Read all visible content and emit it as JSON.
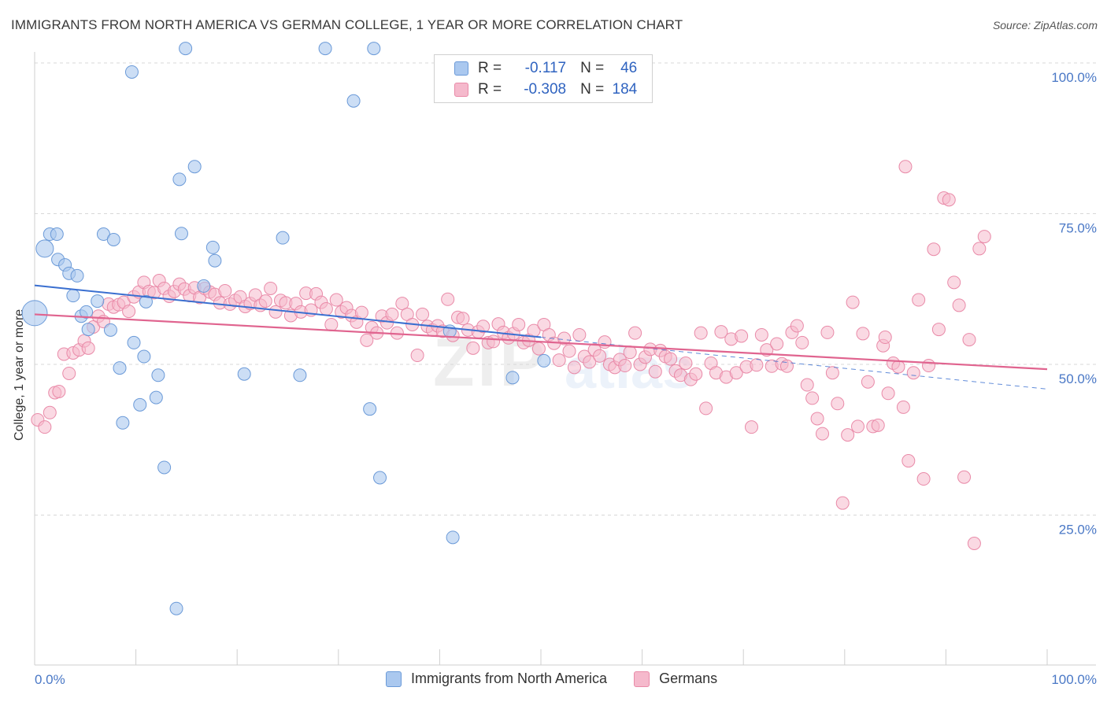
{
  "title": "IMMIGRANTS FROM NORTH AMERICA VS GERMAN COLLEGE, 1 YEAR OR MORE CORRELATION CHART",
  "source": "Source: ZipAtlas.com",
  "watermark": {
    "zip": "ZIP",
    "atlas": "atlas"
  },
  "legend": {
    "rows": [
      {
        "r_label": "R =",
        "r_value": "-0.117",
        "n_label": "N =",
        "n_value": "46"
      },
      {
        "r_label": "R =",
        "r_value": "-0.308",
        "n_label": "N =",
        "n_value": "184"
      }
    ]
  },
  "bottom_legend": {
    "series1": "Immigrants from North America",
    "series2": "Germans"
  },
  "colors": {
    "blue_fill": "#aac8ef",
    "blue_stroke": "#6b9ad8",
    "blue_line": "#3a6fd0",
    "pink_fill": "#f5b9cc",
    "pink_stroke": "#e98aa8",
    "pink_line": "#e0648f",
    "grid": "#d8d8d8",
    "tick_text": "#4a78c6"
  },
  "chart_data": {
    "type": "scatter",
    "title": "IMMIGRANTS FROM NORTH AMERICA VS GERMAN COLLEGE, 1 YEAR OR MORE CORRELATION CHART",
    "xlabel": "",
    "ylabel": "College, 1 year or more",
    "x_tick_labels": [
      "0.0%",
      "100.0%"
    ],
    "y_tick_labels": [
      "100.0%",
      "75.0%",
      "50.0%",
      "25.0%"
    ],
    "xlim": [
      0,
      100
    ],
    "ylim": [
      0,
      105
    ],
    "grid": true,
    "legend_position": "top-center",
    "series": [
      {
        "name": "Immigrants from North America",
        "color": "#aac8ef",
        "R": -0.117,
        "N": 46,
        "trend": {
          "x0": 0,
          "y0": 63.1,
          "x1": 100,
          "y1": 45.9,
          "solid_until": 50
        },
        "points": [
          [
            0,
            58.5
          ],
          [
            1.0,
            69.2
          ],
          [
            1.5,
            71.6
          ],
          [
            2.2,
            71.6
          ],
          [
            2.3,
            67.4
          ],
          [
            3.0,
            66.5
          ],
          [
            3.4,
            65.1
          ],
          [
            4.2,
            64.7
          ],
          [
            3.8,
            61.4
          ],
          [
            4.6,
            58.0
          ],
          [
            5.1,
            58.7
          ],
          [
            5.3,
            55.8
          ],
          [
            6.2,
            60.5
          ],
          [
            7.5,
            55.7
          ],
          [
            6.8,
            71.6
          ],
          [
            7.8,
            70.7
          ],
          [
            8.4,
            49.4
          ],
          [
            8.7,
            40.3
          ],
          [
            9.6,
            98.5
          ],
          [
            9.8,
            53.6
          ],
          [
            10.4,
            43.3
          ],
          [
            10.8,
            51.3
          ],
          [
            11.0,
            60.4
          ],
          [
            12.0,
            44.5
          ],
          [
            12.2,
            48.2
          ],
          [
            12.8,
            32.9
          ],
          [
            14.3,
            80.7
          ],
          [
            14.9,
            102.4
          ],
          [
            14.5,
            71.7
          ],
          [
            15.8,
            82.8
          ],
          [
            16.7,
            63.0
          ],
          [
            17.6,
            69.4
          ],
          [
            17.8,
            67.2
          ],
          [
            20.7,
            48.4
          ],
          [
            24.5,
            71.0
          ],
          [
            26.2,
            48.2
          ],
          [
            28.7,
            102.4
          ],
          [
            31.5,
            93.7
          ],
          [
            33.1,
            42.6
          ],
          [
            33.5,
            102.4
          ],
          [
            34.1,
            31.2
          ],
          [
            41.3,
            21.3
          ],
          [
            47.2,
            47.8
          ],
          [
            50.3,
            50.6
          ],
          [
            14.0,
            9.5
          ],
          [
            41.0,
            55.5
          ]
        ]
      },
      {
        "name": "Germans",
        "color": "#f5b9cc",
        "R": -0.308,
        "N": 184,
        "trend": {
          "x0": 0,
          "y0": 58.3,
          "x1": 100,
          "y1": 49.2,
          "solid_until": 100
        },
        "points": [
          [
            0.3,
            40.8
          ],
          [
            1.0,
            39.6
          ],
          [
            1.5,
            42.0
          ],
          [
            2.0,
            45.3
          ],
          [
            2.4,
            45.5
          ],
          [
            2.9,
            51.7
          ],
          [
            3.4,
            48.5
          ],
          [
            3.8,
            51.9
          ],
          [
            4.4,
            52.4
          ],
          [
            4.9,
            53.9
          ],
          [
            5.3,
            52.7
          ],
          [
            5.8,
            56.2
          ],
          [
            6.3,
            58.0
          ],
          [
            6.8,
            57.1
          ],
          [
            7.3,
            60.0
          ],
          [
            7.8,
            59.5
          ],
          [
            8.3,
            59.9
          ],
          [
            8.8,
            60.3
          ],
          [
            9.3,
            58.8
          ],
          [
            9.8,
            61.2
          ],
          [
            10.3,
            62.0
          ],
          [
            10.8,
            63.6
          ],
          [
            11.3,
            62.1
          ],
          [
            11.8,
            61.9
          ],
          [
            12.3,
            63.9
          ],
          [
            12.8,
            62.6
          ],
          [
            13.3,
            61.3
          ],
          [
            13.8,
            62.1
          ],
          [
            14.3,
            63.3
          ],
          [
            14.8,
            62.5
          ],
          [
            15.3,
            61.4
          ],
          [
            15.8,
            62.7
          ],
          [
            16.3,
            61.1
          ],
          [
            16.8,
            62.6
          ],
          [
            17.3,
            62.0
          ],
          [
            17.8,
            61.6
          ],
          [
            18.3,
            60.2
          ],
          [
            18.8,
            62.2
          ],
          [
            19.3,
            60.0
          ],
          [
            19.8,
            60.6
          ],
          [
            20.3,
            61.2
          ],
          [
            20.8,
            59.6
          ],
          [
            21.3,
            60.1
          ],
          [
            21.8,
            61.5
          ],
          [
            22.3,
            59.8
          ],
          [
            22.8,
            60.5
          ],
          [
            23.3,
            62.6
          ],
          [
            23.8,
            58.7
          ],
          [
            24.3,
            60.6
          ],
          [
            24.8,
            60.2
          ],
          [
            25.3,
            58.1
          ],
          [
            25.8,
            60.1
          ],
          [
            26.3,
            58.7
          ],
          [
            26.8,
            61.8
          ],
          [
            27.3,
            59.0
          ],
          [
            27.8,
            61.7
          ],
          [
            28.3,
            60.3
          ],
          [
            28.8,
            59.2
          ],
          [
            29.3,
            56.6
          ],
          [
            29.8,
            60.7
          ],
          [
            30.3,
            58.7
          ],
          [
            30.8,
            59.4
          ],
          [
            31.3,
            58.1
          ],
          [
            31.8,
            57.0
          ],
          [
            32.3,
            58.6
          ],
          [
            32.8,
            54.0
          ],
          [
            33.3,
            56.1
          ],
          [
            33.8,
            55.2
          ],
          [
            34.3,
            58.0
          ],
          [
            34.8,
            56.9
          ],
          [
            35.3,
            58.3
          ],
          [
            35.8,
            55.2
          ],
          [
            36.3,
            60.1
          ],
          [
            36.8,
            58.3
          ],
          [
            37.3,
            56.6
          ],
          [
            37.8,
            51.5
          ],
          [
            38.3,
            58.3
          ],
          [
            38.8,
            56.3
          ],
          [
            39.3,
            55.7
          ],
          [
            39.8,
            56.4
          ],
          [
            40.3,
            55.5
          ],
          [
            40.8,
            60.8
          ],
          [
            41.3,
            54.8
          ],
          [
            41.8,
            57.8
          ],
          [
            42.3,
            57.6
          ],
          [
            42.8,
            55.7
          ],
          [
            43.3,
            52.7
          ],
          [
            43.8,
            55.4
          ],
          [
            44.3,
            56.3
          ],
          [
            44.8,
            53.6
          ],
          [
            45.3,
            53.8
          ],
          [
            45.8,
            56.7
          ],
          [
            46.3,
            55.3
          ],
          [
            46.8,
            54.4
          ],
          [
            47.3,
            55.1
          ],
          [
            47.8,
            56.6
          ],
          [
            48.3,
            53.6
          ],
          [
            48.8,
            54.0
          ],
          [
            49.3,
            55.6
          ],
          [
            49.8,
            52.6
          ],
          [
            50.3,
            56.6
          ],
          [
            50.8,
            54.9
          ],
          [
            51.3,
            53.5
          ],
          [
            51.8,
            50.7
          ],
          [
            52.3,
            54.3
          ],
          [
            52.8,
            52.2
          ],
          [
            53.3,
            49.5
          ],
          [
            53.8,
            54.9
          ],
          [
            54.3,
            51.3
          ],
          [
            54.8,
            50.4
          ],
          [
            55.3,
            52.4
          ],
          [
            55.8,
            51.4
          ],
          [
            56.3,
            53.7
          ],
          [
            56.8,
            50.0
          ],
          [
            57.3,
            49.5
          ],
          [
            57.8,
            50.8
          ],
          [
            58.3,
            49.8
          ],
          [
            58.8,
            52.0
          ],
          [
            59.3,
            55.2
          ],
          [
            59.8,
            50.0
          ],
          [
            60.3,
            51.2
          ],
          [
            60.8,
            52.5
          ],
          [
            61.3,
            48.8
          ],
          [
            61.8,
            52.3
          ],
          [
            62.3,
            51.3
          ],
          [
            62.8,
            50.9
          ],
          [
            63.3,
            48.9
          ],
          [
            63.8,
            48.2
          ],
          [
            64.3,
            50.2
          ],
          [
            64.8,
            47.5
          ],
          [
            65.3,
            48.4
          ],
          [
            65.8,
            55.2
          ],
          [
            66.3,
            42.7
          ],
          [
            66.8,
            50.2
          ],
          [
            67.3,
            48.6
          ],
          [
            67.8,
            55.4
          ],
          [
            68.3,
            47.9
          ],
          [
            68.8,
            54.2
          ],
          [
            69.3,
            48.6
          ],
          [
            69.8,
            54.7
          ],
          [
            70.3,
            49.6
          ],
          [
            70.8,
            39.6
          ],
          [
            71.3,
            49.9
          ],
          [
            71.8,
            54.9
          ],
          [
            72.3,
            52.4
          ],
          [
            72.8,
            49.7
          ],
          [
            73.3,
            53.4
          ],
          [
            73.8,
            50.1
          ],
          [
            74.3,
            49.7
          ],
          [
            74.8,
            55.3
          ],
          [
            75.3,
            56.4
          ],
          [
            75.8,
            53.6
          ],
          [
            76.3,
            46.6
          ],
          [
            76.8,
            44.4
          ],
          [
            77.3,
            41.0
          ],
          [
            77.8,
            38.5
          ],
          [
            78.3,
            55.3
          ],
          [
            78.8,
            48.6
          ],
          [
            79.3,
            43.5
          ],
          [
            79.8,
            27.0
          ],
          [
            80.3,
            38.3
          ],
          [
            80.8,
            60.3
          ],
          [
            81.3,
            39.7
          ],
          [
            81.8,
            55.1
          ],
          [
            82.3,
            47.1
          ],
          [
            82.8,
            39.7
          ],
          [
            83.3,
            39.9
          ],
          [
            83.8,
            53.1
          ],
          [
            84.3,
            45.2
          ],
          [
            84.8,
            50.2
          ],
          [
            85.3,
            49.6
          ],
          [
            85.8,
            42.9
          ],
          [
            86.3,
            34.0
          ],
          [
            86.8,
            48.6
          ],
          [
            87.3,
            60.7
          ],
          [
            87.8,
            31.0
          ],
          [
            88.3,
            49.8
          ],
          [
            88.8,
            69.1
          ],
          [
            89.3,
            55.8
          ],
          [
            89.8,
            77.6
          ],
          [
            90.3,
            77.3
          ],
          [
            90.8,
            63.6
          ],
          [
            91.3,
            59.8
          ],
          [
            91.8,
            31.3
          ],
          [
            92.3,
            54.1
          ],
          [
            92.8,
            20.3
          ],
          [
            93.3,
            69.2
          ],
          [
            93.8,
            71.2
          ],
          [
            86.0,
            82.8
          ],
          [
            84.0,
            54.5
          ]
        ]
      }
    ]
  }
}
